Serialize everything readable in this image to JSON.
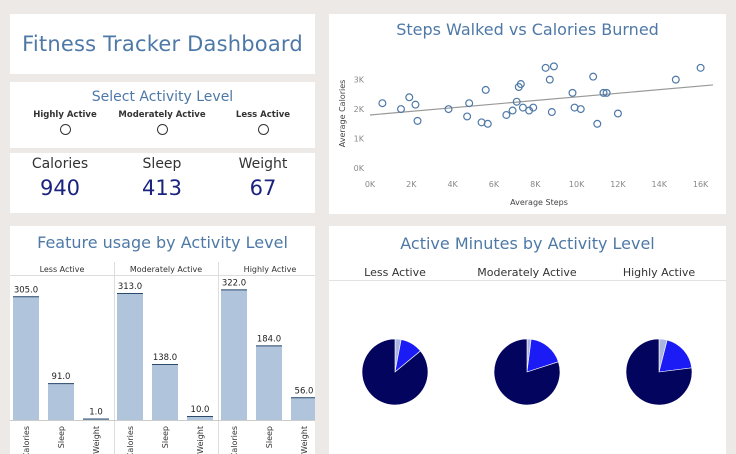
{
  "dashboard": {
    "title": "Fitness Tracker Dashboard"
  },
  "filter": {
    "title": "Select Activity Level",
    "options": [
      "Highly Active",
      "Moderately Active",
      "Less Active"
    ]
  },
  "kpis": [
    {
      "label": "Calories",
      "value": "940"
    },
    {
      "label": "Sleep",
      "value": "413"
    },
    {
      "label": "Weight",
      "value": "67"
    }
  ],
  "chart_data": [
    {
      "type": "scatter",
      "title": "Steps Walked vs Calories Burned",
      "xlabel": "Average Steps",
      "ylabel": "Average Calories",
      "xlim": [
        0,
        16600
      ],
      "ylim": [
        0,
        3700
      ],
      "xticks": [
        "0K",
        "2K",
        "4K",
        "6K",
        "8K",
        "10K",
        "12K",
        "14K",
        "16K"
      ],
      "yticks": [
        "0K",
        "1K",
        "2K",
        "3K"
      ],
      "trendline": {
        "x": [
          0,
          16600
        ],
        "y": [
          1800,
          2820
        ]
      },
      "points": [
        {
          "x": 600,
          "y": 2200
        },
        {
          "x": 1500,
          "y": 2000
        },
        {
          "x": 1900,
          "y": 2400
        },
        {
          "x": 2200,
          "y": 2150
        },
        {
          "x": 2300,
          "y": 1600
        },
        {
          "x": 3800,
          "y": 2000
        },
        {
          "x": 4700,
          "y": 1750
        },
        {
          "x": 4800,
          "y": 2200
        },
        {
          "x": 5400,
          "y": 1550
        },
        {
          "x": 5700,
          "y": 1500
        },
        {
          "x": 5600,
          "y": 2650
        },
        {
          "x": 6600,
          "y": 1800
        },
        {
          "x": 6900,
          "y": 1950
        },
        {
          "x": 7100,
          "y": 2250
        },
        {
          "x": 7200,
          "y": 2750
        },
        {
          "x": 7300,
          "y": 2850
        },
        {
          "x": 7400,
          "y": 2050
        },
        {
          "x": 7700,
          "y": 1950
        },
        {
          "x": 7900,
          "y": 2050
        },
        {
          "x": 8500,
          "y": 3400
        },
        {
          "x": 8700,
          "y": 3000
        },
        {
          "x": 8800,
          "y": 1900
        },
        {
          "x": 8900,
          "y": 3450
        },
        {
          "x": 9800,
          "y": 2550
        },
        {
          "x": 9900,
          "y": 2050
        },
        {
          "x": 10200,
          "y": 2000
        },
        {
          "x": 10800,
          "y": 3100
        },
        {
          "x": 11000,
          "y": 1500
        },
        {
          "x": 11300,
          "y": 2550
        },
        {
          "x": 11450,
          "y": 2550
        },
        {
          "x": 12000,
          "y": 1850
        },
        {
          "x": 14800,
          "y": 3000
        },
        {
          "x": 16000,
          "y": 3400
        }
      ]
    },
    {
      "type": "bar",
      "title": "Feature usage by Activity Level",
      "panels": [
        {
          "name": "Less Active",
          "categories": [
            "Calories",
            "Sleep",
            "Weight"
          ],
          "values": [
            305.0,
            91.0,
            1.0
          ]
        },
        {
          "name": "Moderately Active",
          "categories": [
            "Calories",
            "Sleep",
            "Weight"
          ],
          "values": [
            313.0,
            138.0,
            10.0
          ]
        },
        {
          "name": "Highly Active",
          "categories": [
            "Calories",
            "Sleep",
            "Weight"
          ],
          "values": [
            322.0,
            184.0,
            56.0
          ]
        }
      ],
      "ymax": 350,
      "barColor": "#b0c4dc"
    },
    {
      "type": "pie",
      "title": "Active Minutes by Activity Level",
      "colors": [
        "#03045e",
        "#1b1bf5",
        "#aab6e0"
      ],
      "pies": [
        {
          "name": "Less Active",
          "values": [
            86,
            11,
            3
          ]
        },
        {
          "name": "Moderately Active",
          "values": [
            80,
            18,
            2
          ]
        },
        {
          "name": "Highly Active",
          "values": [
            77,
            19,
            4
          ]
        }
      ]
    }
  ]
}
